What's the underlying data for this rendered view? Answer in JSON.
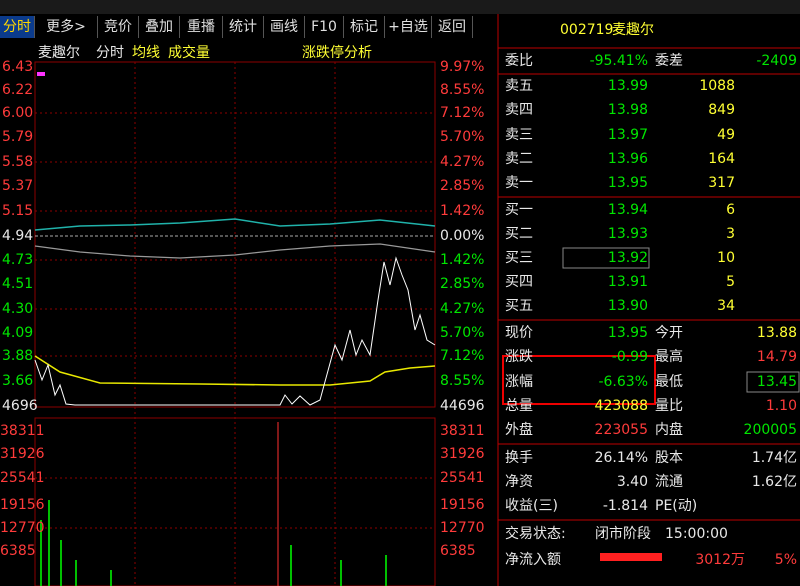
{
  "toolbar": [
    "分时",
    "更多>",
    "竞价",
    "叠加",
    "重播",
    "统计",
    "画线",
    "F10",
    "标记",
    "+自选",
    "返回"
  ],
  "chart": {
    "name": "麦趣尔",
    "mode": "分时",
    "avg": "均线",
    "volume": "成交量",
    "analysis": "涨跌停分析",
    "price_labels": [
      "6.43",
      "6.22",
      "6.00",
      "5.79",
      "5.58",
      "5.37",
      "5.15",
      "4.94",
      "4.73",
      "4.51",
      "4.30",
      "4.09",
      "3.88",
      "3.66",
      "4696"
    ],
    "pct_labels": [
      "9.97%",
      "8.55%",
      "7.12%",
      "5.70%",
      "4.27%",
      "2.85%",
      "1.42%",
      "0.00%",
      "1.42%",
      "2.85%",
      "4.27%",
      "5.70%",
      "7.12%",
      "8.55%",
      "44696"
    ],
    "volume_labels": [
      "38311",
      "31926",
      "25541",
      "19156",
      "12770",
      "6385"
    ]
  },
  "quote": {
    "code": "002719",
    "name": "麦趣尔",
    "weibi_label": "委比",
    "weibi": "-95.41%",
    "weicha_label": "委差",
    "weicha": "-2409",
    "asks": [
      {
        "label": "卖五",
        "price": "13.99",
        "volume": "1088"
      },
      {
        "label": "卖四",
        "price": "13.98",
        "volume": "849"
      },
      {
        "label": "卖三",
        "price": "13.97",
        "volume": "49"
      },
      {
        "label": "卖二",
        "price": "13.96",
        "volume": "164"
      },
      {
        "label": "卖一",
        "price": "13.95",
        "volume": "317"
      }
    ],
    "bids": [
      {
        "label": "买一",
        "price": "13.94",
        "volume": "6"
      },
      {
        "label": "买二",
        "price": "13.93",
        "volume": "3"
      },
      {
        "label": "买三",
        "price": "13.92",
        "volume": "10"
      },
      {
        "label": "买四",
        "price": "13.91",
        "volume": "5"
      },
      {
        "label": "买五",
        "price": "13.90",
        "volume": "34"
      }
    ],
    "stats": [
      [
        "现价",
        "13.95",
        "今开",
        "13.88"
      ],
      [
        "涨跌",
        "-0.99",
        "最高",
        "14.79"
      ],
      [
        "涨幅",
        "-6.63%",
        "最低",
        "13.45"
      ],
      [
        "总量",
        "423088",
        "量比",
        "1.10"
      ],
      [
        "外盘",
        "223055",
        "内盘",
        "200005"
      ]
    ],
    "info": [
      [
        "换手",
        "26.14%",
        "股本",
        "1.74亿"
      ],
      [
        "净资",
        "3.40",
        "流通",
        "1.62亿"
      ],
      [
        "收益(三)",
        "-1.814",
        "PE(动)",
        ""
      ]
    ],
    "status": {
      "label": "交易状态:",
      "phase": "闭市阶段",
      "time": "15:00:00"
    },
    "flow": {
      "label": "净流入额",
      "value": "3012万",
      "pct": "5%"
    }
  }
}
